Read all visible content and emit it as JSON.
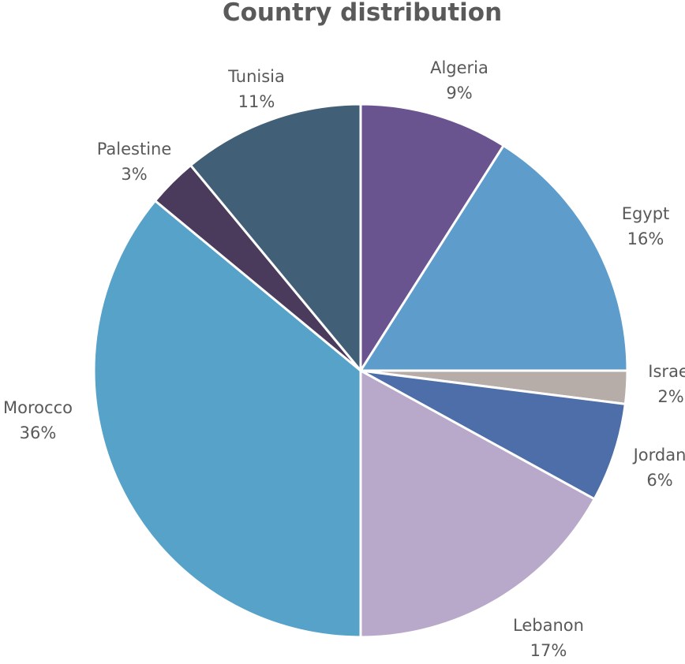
{
  "chart_data": {
    "type": "pie",
    "title": "Country distribution",
    "unit": "%",
    "slices": [
      {
        "label": "Algeria",
        "value": 9,
        "value_label": "9%",
        "color": "#6a5490"
      },
      {
        "label": "Egypt",
        "value": 16,
        "value_label": "16%",
        "color": "#5e9ccb"
      },
      {
        "label": "Israel",
        "value": 2,
        "value_label": "2%",
        "color": "#b7ada8"
      },
      {
        "label": "Jordan",
        "value": 6,
        "value_label": "6%",
        "color": "#4d6ea8"
      },
      {
        "label": "Lebanon",
        "value": 17,
        "value_label": "17%",
        "color": "#b8a8c9"
      },
      {
        "label": "Morocco",
        "value": 36,
        "value_label": "36%",
        "color": "#56a2c8"
      },
      {
        "label": "Palestine",
        "value": 3,
        "value_label": "3%",
        "color": "#4a3b5c"
      },
      {
        "label": "Tunisia",
        "value": 11,
        "value_label": "11%",
        "color": "#416078"
      }
    ],
    "legend": "none",
    "labels": "outside"
  }
}
